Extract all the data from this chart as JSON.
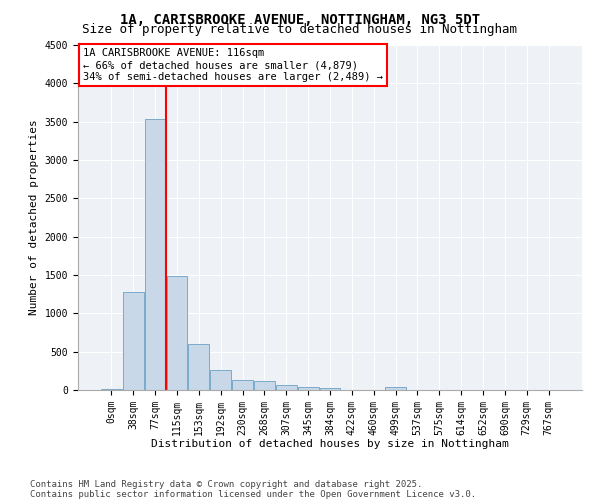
{
  "title": "1A, CARISBROOKE AVENUE, NOTTINGHAM, NG3 5DT",
  "subtitle": "Size of property relative to detached houses in Nottingham",
  "xlabel": "Distribution of detached houses by size in Nottingham",
  "ylabel": "Number of detached properties",
  "bar_color": "#c8d8e8",
  "bar_edge_color": "#7aaaca",
  "background_color": "#eef2f7",
  "grid_color": "#ffffff",
  "bin_labels": [
    "0sqm",
    "38sqm",
    "77sqm",
    "115sqm",
    "153sqm",
    "192sqm",
    "230sqm",
    "268sqm",
    "307sqm",
    "345sqm",
    "384sqm",
    "422sqm",
    "460sqm",
    "499sqm",
    "537sqm",
    "575sqm",
    "614sqm",
    "652sqm",
    "690sqm",
    "729sqm",
    "767sqm"
  ],
  "bar_heights": [
    15,
    1280,
    3530,
    1490,
    600,
    260,
    130,
    120,
    65,
    35,
    20,
    0,
    0,
    40,
    0,
    0,
    0,
    0,
    0,
    0,
    0
  ],
  "ylim": [
    0,
    4500
  ],
  "yticks": [
    0,
    500,
    1000,
    1500,
    2000,
    2500,
    3000,
    3500,
    4000,
    4500
  ],
  "property_line_label": "1A CARISBROOKE AVENUE: 116sqm",
  "annotation_line1": "← 66% of detached houses are smaller (4,879)",
  "annotation_line2": "34% of semi-detached houses are larger (2,489) →",
  "footer_line1": "Contains HM Land Registry data © Crown copyright and database right 2025.",
  "footer_line2": "Contains public sector information licensed under the Open Government Licence v3.0.",
  "title_fontsize": 10,
  "subtitle_fontsize": 9,
  "axis_label_fontsize": 8,
  "tick_fontsize": 7,
  "annotation_fontsize": 7.5,
  "footer_fontsize": 6.5
}
